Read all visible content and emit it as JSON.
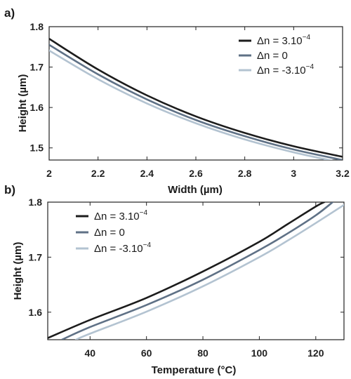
{
  "chart_data": [
    {
      "panel_label": "a)",
      "type": "line",
      "xlabel": "Width (µm)",
      "ylabel": "Height (µm)",
      "xlim": [
        2,
        3.2
      ],
      "ylim": [
        1.47,
        1.8
      ],
      "xticks": [
        2,
        2.2,
        2.4,
        2.6,
        2.8,
        3,
        3.2
      ],
      "xtick_labels": [
        "2",
        "2.2",
        "2.4",
        "2.6",
        "2.8",
        "3",
        "3.2"
      ],
      "yticks": [
        1.5,
        1.6,
        1.7,
        1.8
      ],
      "ytick_labels": [
        "1.5",
        "1.6",
        "1.7",
        "1.8"
      ],
      "grid": false,
      "legend_position": "top-right",
      "series": [
        {
          "name": "Δn = 3.10",
          "exponent": "−4",
          "color": "#1c1c1c",
          "x": [
            2.0,
            2.2,
            2.4,
            2.6,
            2.8,
            3.0,
            3.2
          ],
          "y": [
            1.77,
            1.694,
            1.63,
            1.578,
            1.537,
            1.504,
            1.478
          ]
        },
        {
          "name": "Δn = 0",
          "exponent": "",
          "color": "#5f7186",
          "x": [
            2.0,
            2.2,
            2.4,
            2.6,
            2.8,
            3.0,
            3.2
          ],
          "y": [
            1.755,
            1.682,
            1.62,
            1.569,
            1.529,
            1.496,
            1.47
          ]
        },
        {
          "name": "Δn = -3.10",
          "exponent": "−4",
          "color": "#b3c3d1",
          "x": [
            2.0,
            2.2,
            2.4,
            2.6,
            2.8,
            3.0,
            3.2
          ],
          "y": [
            1.741,
            1.67,
            1.61,
            1.561,
            1.521,
            1.489,
            1.463
          ]
        }
      ]
    },
    {
      "panel_label": "b)",
      "type": "line",
      "xlabel": "Temperature (°C)",
      "ylabel": "Height (µm)",
      "xlim": [
        25,
        130
      ],
      "ylim": [
        1.55,
        1.8
      ],
      "xticks": [
        40,
        60,
        80,
        100,
        120
      ],
      "xtick_labels": [
        "40",
        "60",
        "80",
        "100",
        "120"
      ],
      "yticks": [
        1.6,
        1.7,
        1.8
      ],
      "ytick_labels": [
        "1.6",
        "1.7",
        "1.8"
      ],
      "grid": false,
      "legend_position": "top-left",
      "series": [
        {
          "name": "Δn = 3.10",
          "exponent": "−4",
          "color": "#1c1c1c",
          "x": [
            25,
            40,
            60,
            80,
            100,
            110,
            120,
            123
          ],
          "y": [
            1.553,
            1.586,
            1.626,
            1.674,
            1.728,
            1.76,
            1.792,
            1.8
          ]
        },
        {
          "name": "Δn = 0",
          "exponent": "",
          "color": "#5f7186",
          "x": [
            30,
            40,
            60,
            80,
            100,
            110,
            120,
            126
          ],
          "y": [
            1.55,
            1.573,
            1.613,
            1.659,
            1.713,
            1.743,
            1.776,
            1.8
          ]
        },
        {
          "name": "Δn = -3.10",
          "exponent": "−4",
          "color": "#b3c3d1",
          "x": [
            35,
            40,
            60,
            80,
            100,
            110,
            120,
            130
          ],
          "y": [
            1.55,
            1.561,
            1.601,
            1.647,
            1.7,
            1.73,
            1.762,
            1.795
          ]
        }
      ]
    }
  ]
}
